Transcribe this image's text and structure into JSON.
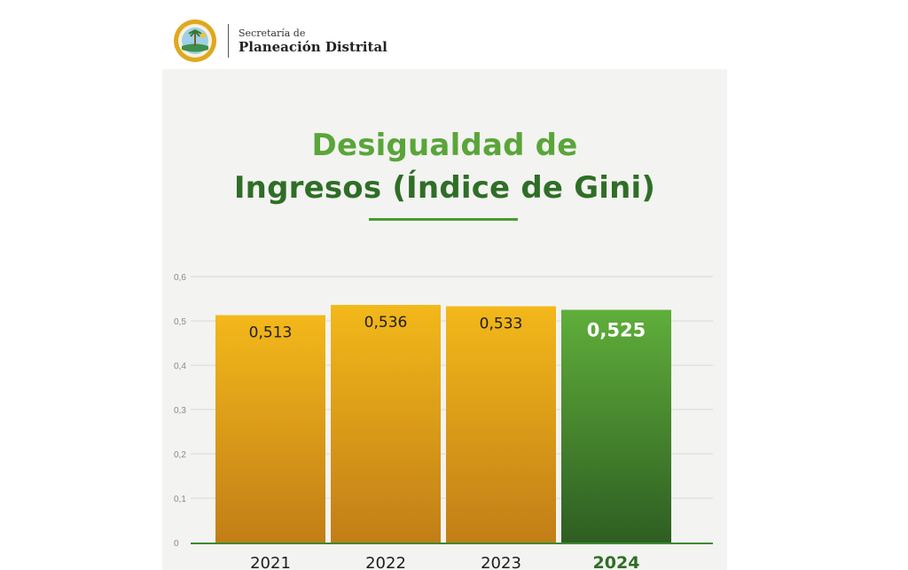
{
  "header": {
    "org_line1": "Secretaría de",
    "org_line2": "Planeación Distrital",
    "seal_icon": "municipal-seal-icon"
  },
  "colors": {
    "title_light_green": "#5aa53a",
    "title_dark_green": "#2f6e27",
    "bar_gold_top": "#f3b81a",
    "bar_gold_bottom": "#c27e17",
    "bar_green_top": "#5fae3a",
    "bar_green_bottom": "#2e5e22",
    "axis_green": "#3c8a2e"
  },
  "chart_data": {
    "type": "bar",
    "title": "Desigualdad de Ingresos (Índice de Gini)",
    "title_lines": [
      "Desigualdad de",
      "Ingresos (Índice de Gini)"
    ],
    "categories": [
      "2021",
      "2022",
      "2023",
      "2024"
    ],
    "values": [
      0.513,
      0.536,
      0.533,
      0.525
    ],
    "value_labels": [
      "0,513",
      "0,536",
      "0,533",
      "0,525"
    ],
    "highlight_index": 3,
    "ylim": [
      0,
      0.6
    ],
    "yticks": [
      "0",
      "0,1",
      "0,2",
      "0,3",
      "0,4",
      "0,5",
      "0,6"
    ],
    "ytick_values": [
      0,
      0.1,
      0.2,
      0.3,
      0.4,
      0.5,
      0.6
    ],
    "grid": true,
    "xlabel": "",
    "ylabel": ""
  }
}
